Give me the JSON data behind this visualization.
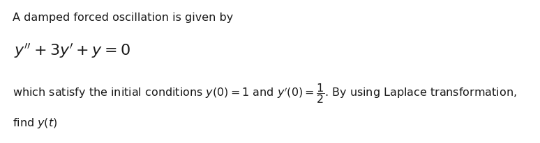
{
  "background_color": "#ffffff",
  "line1_text": "A damped forced oscillation is given by",
  "line1_fontsize": 11.5,
  "line2_math": "$y''+3y'+y=0$",
  "line2_fontsize": 16,
  "line3_full": "which satisfy the initial conditions $y(0)=1$ and $y'(0)=\\dfrac{1}{2}$. By using Laplace transformation,",
  "line3_fontsize": 11.5,
  "line4_text": "find $y(t)$",
  "line4_fontsize": 11.5,
  "text_color": "#1a1a1a",
  "fig_width": 7.74,
  "fig_height": 2.07,
  "dpi": 100
}
